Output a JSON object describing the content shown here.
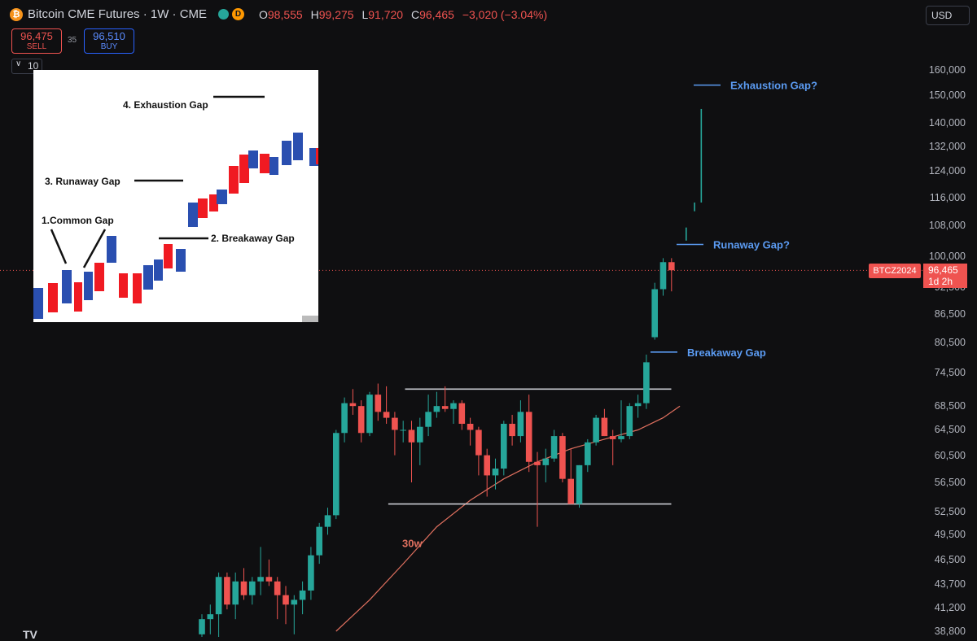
{
  "header": {
    "title": "Bitcoin CME Futures · 1W · CME",
    "d_badge": "D",
    "ohlc": [
      {
        "key": "O",
        "value": "98,555"
      },
      {
        "key": "H",
        "value": "99,275"
      },
      {
        "key": "L",
        "value": "91,720"
      },
      {
        "key": "C",
        "value": "96,465"
      }
    ],
    "change": "−3,020 (−3.04%)",
    "currency": "USD"
  },
  "trade": {
    "sell_price": "96,475",
    "sell_label": "SELL",
    "spread": "35",
    "buy_price": "96,510",
    "buy_label": "BUY",
    "indicator_count": "10"
  },
  "colors": {
    "up": "#26a69a",
    "down": "#ef5350",
    "annotation": "#5b9bf2",
    "ma": "#e0705f",
    "background": "#0f0f11"
  },
  "price_tag": {
    "symbol": "BTCZ2024",
    "price": "96,465",
    "countdown": "1d 2h"
  },
  "chart_data": {
    "type": "candlestick",
    "title": "Bitcoin CME Futures · 1W · CME",
    "scale": "log",
    "ylim": [
      38800,
      160000
    ],
    "y_ticks": [
      160000,
      150000,
      140000,
      132000,
      124000,
      116000,
      108000,
      100000,
      92500,
      86500,
      80500,
      74500,
      68500,
      64500,
      60500,
      56500,
      52500,
      49500,
      46500,
      43700,
      41200,
      38800
    ],
    "y_tick_labels": [
      "160,000",
      "150,000",
      "140,000",
      "132,000",
      "124,000",
      "116,000",
      "108,000",
      "100,000",
      "92,500",
      "86,500",
      "80,500",
      "74,500",
      "68,500",
      "64,500",
      "60,500",
      "56,500",
      "52,500",
      "49,500",
      "46,500",
      "43,700",
      "41,200",
      "38,800"
    ],
    "candles": [
      {
        "o": 38500,
        "h": 40500,
        "l": 37000,
        "c": 40000
      },
      {
        "o": 40000,
        "h": 41500,
        "l": 38500,
        "c": 40500
      },
      {
        "o": 40500,
        "h": 45000,
        "l": 38000,
        "c": 44500
      },
      {
        "o": 44500,
        "h": 45000,
        "l": 41000,
        "c": 41500
      },
      {
        "o": 41500,
        "h": 45000,
        "l": 40000,
        "c": 44000
      },
      {
        "o": 44000,
        "h": 45500,
        "l": 42000,
        "c": 42500
      },
      {
        "o": 42500,
        "h": 44500,
        "l": 41500,
        "c": 44000
      },
      {
        "o": 44000,
        "h": 48000,
        "l": 42500,
        "c": 44500
      },
      {
        "o": 44500,
        "h": 46500,
        "l": 43500,
        "c": 44000
      },
      {
        "o": 44000,
        "h": 44500,
        "l": 40000,
        "c": 42500
      },
      {
        "o": 42500,
        "h": 43500,
        "l": 39500,
        "c": 41500
      },
      {
        "o": 41500,
        "h": 42500,
        "l": 38500,
        "c": 42000
      },
      {
        "o": 42000,
        "h": 44000,
        "l": 40500,
        "c": 43000
      },
      {
        "o": 43000,
        "h": 48000,
        "l": 42000,
        "c": 47000
      },
      {
        "o": 47000,
        "h": 51000,
        "l": 46000,
        "c": 50500
      },
      {
        "o": 50500,
        "h": 53000,
        "l": 49500,
        "c": 52000
      },
      {
        "o": 52000,
        "h": 64500,
        "l": 51500,
        "c": 64000
      },
      {
        "o": 64000,
        "h": 70000,
        "l": 62500,
        "c": 69000
      },
      {
        "o": 69000,
        "h": 71500,
        "l": 67000,
        "c": 68500
      },
      {
        "o": 68500,
        "h": 69500,
        "l": 62500,
        "c": 64000
      },
      {
        "o": 64000,
        "h": 71000,
        "l": 63500,
        "c": 70500
      },
      {
        "o": 70500,
        "h": 72500,
        "l": 66000,
        "c": 67500
      },
      {
        "o": 67500,
        "h": 72000,
        "l": 65500,
        "c": 66500
      },
      {
        "o": 66500,
        "h": 67500,
        "l": 60500,
        "c": 64500
      },
      {
        "o": 64500,
        "h": 66000,
        "l": 62500,
        "c": 64500
      },
      {
        "o": 64500,
        "h": 66000,
        "l": 56500,
        "c": 62500
      },
      {
        "o": 62500,
        "h": 66500,
        "l": 59000,
        "c": 65000
      },
      {
        "o": 65000,
        "h": 70500,
        "l": 63500,
        "c": 67500
      },
      {
        "o": 67500,
        "h": 71000,
        "l": 66500,
        "c": 68500
      },
      {
        "o": 68500,
        "h": 72000,
        "l": 67500,
        "c": 68000
      },
      {
        "o": 68000,
        "h": 69500,
        "l": 65500,
        "c": 69000
      },
      {
        "o": 69000,
        "h": 69500,
        "l": 64500,
        "c": 65500
      },
      {
        "o": 65500,
        "h": 66500,
        "l": 62000,
        "c": 64500
      },
      {
        "o": 64500,
        "h": 65000,
        "l": 57500,
        "c": 60500
      },
      {
        "o": 60500,
        "h": 61500,
        "l": 54500,
        "c": 57500
      },
      {
        "o": 57500,
        "h": 60000,
        "l": 55500,
        "c": 58500
      },
      {
        "o": 58500,
        "h": 66000,
        "l": 57500,
        "c": 65500
      },
      {
        "o": 65500,
        "h": 67000,
        "l": 62000,
        "c": 63500
      },
      {
        "o": 63500,
        "h": 69500,
        "l": 62500,
        "c": 67500
      },
      {
        "o": 67500,
        "h": 70500,
        "l": 58000,
        "c": 59500
      },
      {
        "o": 59500,
        "h": 61000,
        "l": 50500,
        "c": 59000
      },
      {
        "o": 59000,
        "h": 61500,
        "l": 56500,
        "c": 60000
      },
      {
        "o": 60000,
        "h": 64500,
        "l": 59500,
        "c": 63500
      },
      {
        "o": 63500,
        "h": 64000,
        "l": 56500,
        "c": 57000
      },
      {
        "o": 57000,
        "h": 61500,
        "l": 53500,
        "c": 53500
      },
      {
        "o": 53500,
        "h": 59000,
        "l": 53000,
        "c": 59000
      },
      {
        "o": 59000,
        "h": 63000,
        "l": 58000,
        "c": 62500
      },
      {
        "o": 62500,
        "h": 67000,
        "l": 62000,
        "c": 66500
      },
      {
        "o": 66500,
        "h": 68000,
        "l": 63500,
        "c": 63500
      },
      {
        "o": 63500,
        "h": 64500,
        "l": 59000,
        "c": 63000
      },
      {
        "o": 63000,
        "h": 69500,
        "l": 62500,
        "c": 63500
      },
      {
        "o": 63500,
        "h": 69000,
        "l": 63000,
        "c": 68500
      },
      {
        "o": 68500,
        "h": 70500,
        "l": 66500,
        "c": 69000
      },
      {
        "o": 69000,
        "h": 78000,
        "l": 68000,
        "c": 76500
      },
      {
        "o": 81500,
        "h": 93500,
        "l": 81000,
        "c": 92000
      },
      {
        "o": 92000,
        "h": 99500,
        "l": 90500,
        "c": 98500
      },
      {
        "o": 98500,
        "h": 99500,
        "l": 91500,
        "c": 96500
      }
    ],
    "ma_label": "30w",
    "ma": [
      {
        "i": 16,
        "v": 38800
      },
      {
        "i": 20,
        "v": 42000
      },
      {
        "i": 24,
        "v": 46000
      },
      {
        "i": 28,
        "v": 50500
      },
      {
        "i": 32,
        "v": 54000
      },
      {
        "i": 36,
        "v": 57000
      },
      {
        "i": 40,
        "v": 59500
      },
      {
        "i": 44,
        "v": 61500
      },
      {
        "i": 48,
        "v": 63000
      },
      {
        "i": 52,
        "v": 64500
      },
      {
        "i": 55,
        "v": 66500
      },
      {
        "i": 57,
        "v": 68500
      }
    ],
    "gap_wicks": [
      {
        "from": 104000,
        "to": 107500,
        "x_after": 56
      },
      {
        "from": 112000,
        "to": 114500,
        "x_after": 57
      },
      {
        "from": 114500,
        "to": 145000,
        "x_after": 57.8
      }
    ],
    "range_lines": [
      {
        "y": 71500,
        "from": 25,
        "to": 55
      },
      {
        "y": 53500,
        "from": 23,
        "to": 55
      }
    ],
    "annotations": [
      {
        "text": "Exhaustion Gap?",
        "y": 154000
      },
      {
        "text": "Runaway Gap?",
        "y": 103000
      },
      {
        "text": "Breakaway Gap",
        "y": 78500
      }
    ],
    "last_price": 96465
  },
  "inset": {
    "labels": [
      "4. Exhaustion Gap",
      "3. Runaway Gap",
      "1.Common Gap",
      "2. Breakaway Gap"
    ]
  }
}
